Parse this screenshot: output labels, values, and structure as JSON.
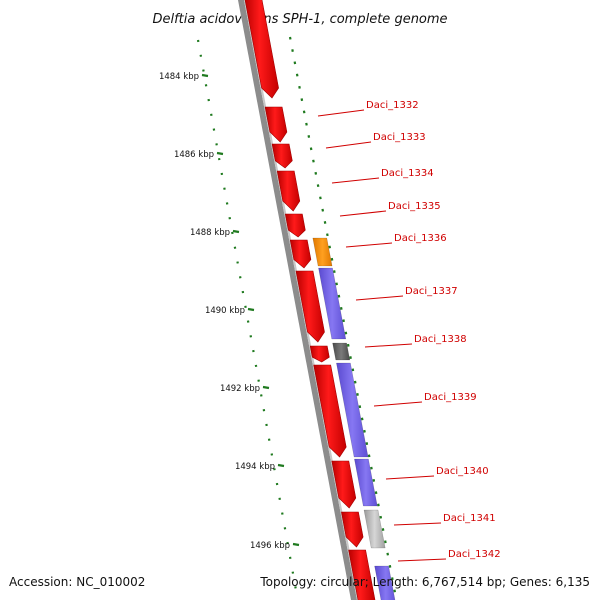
{
  "title": "Delftia acidovorans SPH-1, complete genome",
  "accession_label": "Accession: NC_010002",
  "summary_label": "Topology: circular; Length: 6,767,514 bp; Genes: 6,135",
  "scale_labels": [
    "1484 kbp",
    "1486 kbp",
    "1488 kbp",
    "1490 kbp",
    "1492 kbp",
    "1494 kbp",
    "1496 kbp"
  ],
  "genes": [
    {
      "label": "Daci_1332"
    },
    {
      "label": "Daci_1333"
    },
    {
      "label": "Daci_1334"
    },
    {
      "label": "Daci_1335"
    },
    {
      "label": "Daci_1336"
    },
    {
      "label": "Daci_1337"
    },
    {
      "label": "Daci_1338"
    },
    {
      "label": "Daci_1339"
    },
    {
      "label": "Daci_1340"
    },
    {
      "label": "Daci_1341"
    },
    {
      "label": "Daci_1342"
    }
  ],
  "colors": {
    "cds": "#ff0000",
    "backbone": "#8a8a8a",
    "tick": "#1f7a1f",
    "label": "#d00000",
    "feature_orange": "#ff8c00",
    "feature_purple": "#7b68ee",
    "feature_dark": "#666666",
    "feature_light": "#bbbbbb"
  }
}
